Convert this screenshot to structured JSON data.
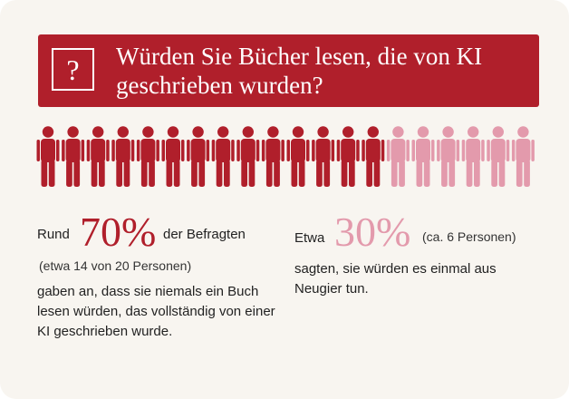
{
  "header": {
    "question_symbol": "?",
    "title": "Würden Sie Bücher lesen, die von KI geschrieben wurden?"
  },
  "people": {
    "total": 20,
    "highlighted": 14,
    "icon": "person-icon",
    "color_primary": "#b01f2b",
    "color_secondary": "#e39aac"
  },
  "stat_left": {
    "lead": "Rund",
    "percent": "70%",
    "tail": "der Befragten",
    "detail": "(etwa 14 von 20 Personen)",
    "text": "gaben an, dass sie niemals ein Buch lesen würden, das vollständig von einer KI geschrieben wurde."
  },
  "stat_right": {
    "lead": "Etwa",
    "percent": "30%",
    "detail": "(ca. 6 Personen)",
    "text": "sagten, sie würden es einmal aus Neugier tun."
  },
  "colors": {
    "accent": "#b01f2b",
    "accent_light": "#e39aac",
    "background": "#f8f5f0"
  }
}
